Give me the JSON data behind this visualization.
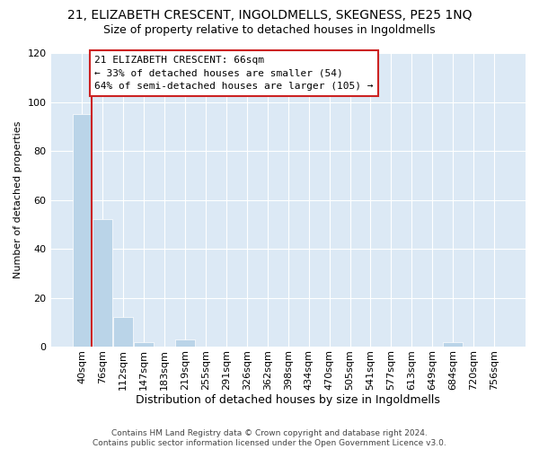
{
  "title_line1": "21, ELIZABETH CRESCENT, INGOLDMELLS, SKEGNESS, PE25 1NQ",
  "title_line2": "Size of property relative to detached houses in Ingoldmells",
  "xlabel": "Distribution of detached houses by size in Ingoldmells",
  "ylabel": "Number of detached properties",
  "bar_labels": [
    "40sqm",
    "76sqm",
    "112sqm",
    "147sqm",
    "183sqm",
    "219sqm",
    "255sqm",
    "291sqm",
    "326sqm",
    "362sqm",
    "398sqm",
    "434sqm",
    "470sqm",
    "505sqm",
    "541sqm",
    "577sqm",
    "613sqm",
    "649sqm",
    "684sqm",
    "720sqm",
    "756sqm"
  ],
  "bar_values": [
    95,
    52,
    12,
    2,
    0,
    3,
    0,
    0,
    0,
    0,
    0,
    0,
    0,
    0,
    0,
    0,
    0,
    0,
    2,
    0,
    0
  ],
  "bar_color": "#bad4e8",
  "bar_edge_color": "#bad4e8",
  "vline_color": "#cc2222",
  "annotation_text": "21 ELIZABETH CRESCENT: 66sqm\n← 33% of detached houses are smaller (54)\n64% of semi-detached houses are larger (105) →",
  "annotation_box_color": "white",
  "annotation_box_edge": "#cc2222",
  "ylim": [
    0,
    120
  ],
  "yticks": [
    0,
    20,
    40,
    60,
    80,
    100,
    120
  ],
  "background_color": "#dce9f5",
  "footer_text": "Contains HM Land Registry data © Crown copyright and database right 2024.\nContains public sector information licensed under the Open Government Licence v3.0.",
  "title_fontsize": 10,
  "subtitle_fontsize": 9,
  "annotation_fontsize": 8,
  "ylabel_fontsize": 8,
  "xlabel_fontsize": 9,
  "tick_fontsize": 8,
  "footer_fontsize": 6.5
}
